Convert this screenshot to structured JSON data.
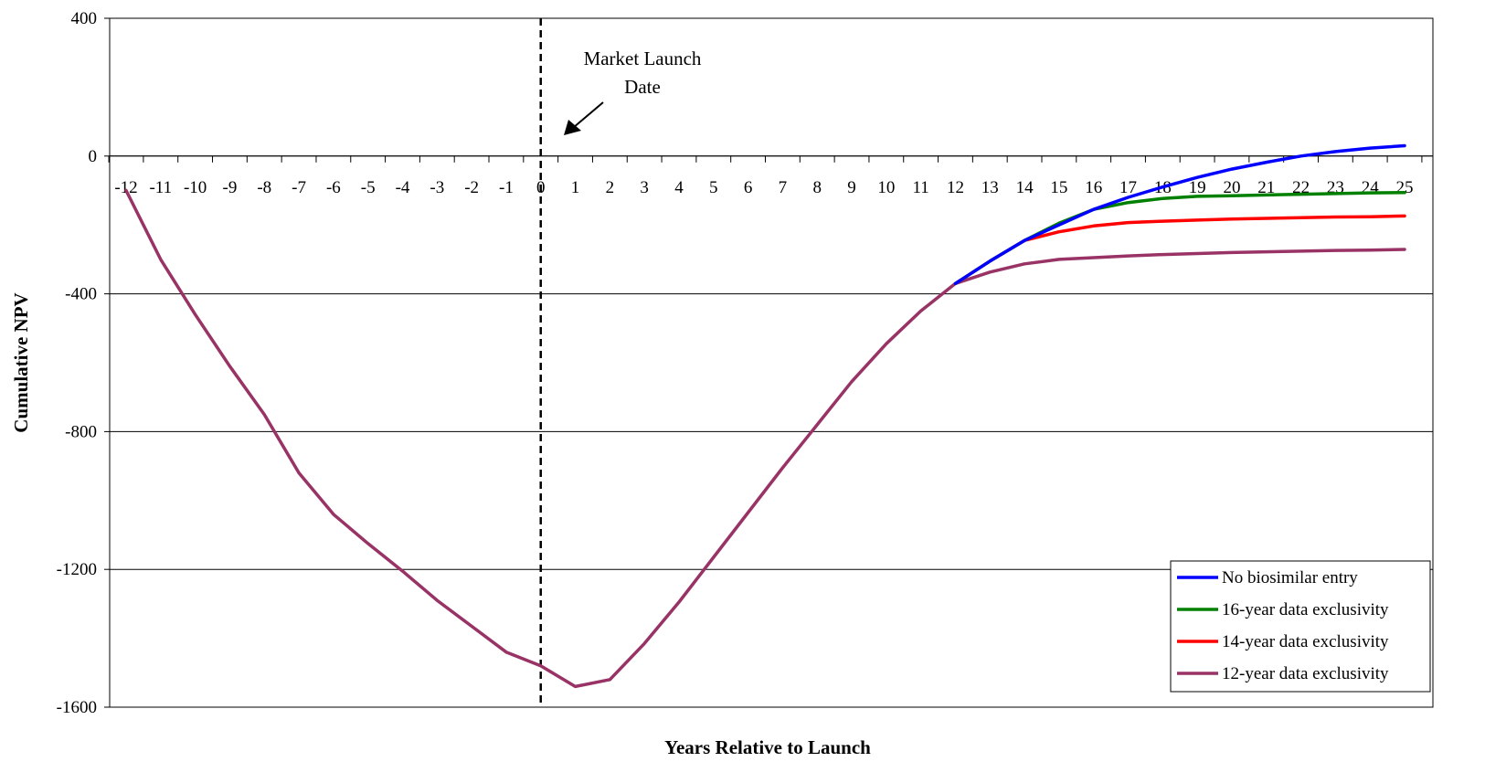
{
  "chart_data": {
    "type": "line",
    "title": "",
    "xlabel": "Years Relative to Launch",
    "ylabel": "Cumulative NPV",
    "xlim": [
      -12,
      25
    ],
    "ylim": [
      -1600,
      400
    ],
    "x_ticks": [
      -12,
      -11,
      -10,
      -9,
      -8,
      -7,
      -6,
      -5,
      -4,
      -3,
      -2,
      -1,
      0,
      1,
      2,
      3,
      4,
      5,
      6,
      7,
      8,
      9,
      10,
      11,
      12,
      13,
      14,
      15,
      16,
      17,
      18,
      19,
      20,
      21,
      22,
      23,
      24,
      25
    ],
    "y_ticks": [
      400,
      0,
      -400,
      -800,
      -1200,
      -1600
    ],
    "grid": "horizontal",
    "legend_position": "bottom-right",
    "annotation": {
      "lines": [
        "Market Launch",
        "Date"
      ],
      "x": 0,
      "marker": "dashed vertical line"
    },
    "x": [
      -12,
      -11,
      -10,
      -9,
      -8,
      -7,
      -6,
      -5,
      -4,
      -3,
      -2,
      -1,
      0,
      1,
      2,
      3,
      4,
      5,
      6,
      7,
      8,
      9,
      10,
      11,
      12,
      13,
      14,
      15,
      16,
      17,
      18,
      19,
      20,
      21,
      22,
      23,
      24,
      25
    ],
    "series": [
      {
        "name": "No biosimilar entry",
        "color": "#0000ff",
        "values": [
          -100,
          -300,
          -460,
          -610,
          -750,
          -920,
          -1040,
          -1125,
          -1205,
          -1290,
          -1365,
          -1440,
          -1480,
          -1540,
          -1520,
          -1415,
          -1295,
          -1165,
          -1035,
          -905,
          -780,
          -655,
          -545,
          -450,
          -370,
          -305,
          -245,
          -200,
          -155,
          -120,
          -90,
          -62,
          -38,
          -18,
          0,
          13,
          23,
          30
        ],
        "visible_from_index": 24
      },
      {
        "name": "16-year data exclusivity",
        "color": "#008000",
        "values": [
          -100,
          -300,
          -460,
          -610,
          -750,
          -920,
          -1040,
          -1125,
          -1205,
          -1290,
          -1365,
          -1440,
          -1480,
          -1540,
          -1520,
          -1415,
          -1295,
          -1165,
          -1035,
          -905,
          -780,
          -655,
          -545,
          -450,
          -370,
          -305,
          -245,
          -195,
          -155,
          -135,
          -123,
          -117,
          -115,
          -113,
          -111,
          -109,
          -107,
          -106
        ],
        "visible_from_index": 24
      },
      {
        "name": "14-year data exclusivity",
        "color": "#ff0000",
        "values": [
          -100,
          -300,
          -460,
          -610,
          -750,
          -920,
          -1040,
          -1125,
          -1205,
          -1290,
          -1365,
          -1440,
          -1480,
          -1540,
          -1520,
          -1415,
          -1295,
          -1165,
          -1035,
          -905,
          -780,
          -655,
          -545,
          -450,
          -370,
          -305,
          -245,
          -220,
          -203,
          -193,
          -189,
          -186,
          -183,
          -181,
          -179,
          -177,
          -176,
          -174
        ],
        "visible_from_index": 24
      },
      {
        "name": "12-year data exclusivity",
        "color": "#993366",
        "values": [
          -100,
          -300,
          -460,
          -610,
          -750,
          -920,
          -1040,
          -1125,
          -1205,
          -1290,
          -1365,
          -1440,
          -1480,
          -1540,
          -1520,
          -1415,
          -1295,
          -1165,
          -1035,
          -905,
          -780,
          -655,
          -545,
          -450,
          -370,
          -337,
          -313,
          -300,
          -295,
          -290,
          -286,
          -283,
          -280,
          -278,
          -276,
          -274,
          -273,
          -271
        ],
        "visible_from_index": 0
      }
    ]
  }
}
